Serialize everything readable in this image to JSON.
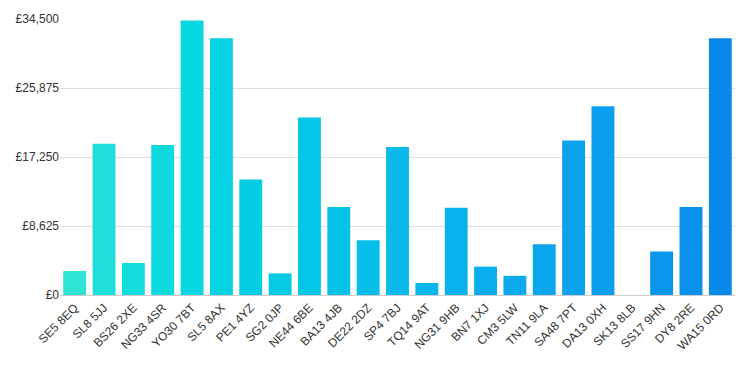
{
  "chart_data": {
    "type": "bar",
    "categories": [
      "SE5 8EQ",
      "SL8 5JJ",
      "BS26 2XE",
      "NG33 4SR",
      "YO30 7BT",
      "SL5 8AX",
      "PE1 4YZ",
      "SG2 0JP",
      "NE44 6BE",
      "BA13 4JB",
      "DE22 2DZ",
      "SP4 7BJ",
      "TQ14 9AT",
      "NG31 9HB",
      "BN7 1XJ",
      "CM3 5LW",
      "TN11 9LA",
      "SA48 7PT",
      "DA13 0XH",
      "SK13 8LB",
      "SS17 9HN",
      "DY8 2RE",
      "WA15 0RD"
    ],
    "values": [
      3000,
      18900,
      4000,
      18750,
      34300,
      32100,
      14450,
      2700,
      22200,
      11000,
      6850,
      18500,
      1500,
      10900,
      3550,
      2400,
      6350,
      19300,
      23600,
      0,
      5450,
      11000,
      32100
    ],
    "colors": [
      "#2fe4d2",
      "#1ee0d8",
      "#14dcdc",
      "#0ddadf",
      "#08d6e0",
      "#05d2e2",
      "#04cee3",
      "#04cae4",
      "#05c6e6",
      "#06c2e7",
      "#07bee8",
      "#08bae9",
      "#09b6ea",
      "#0ab2eb",
      "#0aaeec",
      "#0aaaec",
      "#0aa6ed",
      "#0aa2ed",
      "#0a9eee",
      "#0a9aee",
      "#0996ed",
      "#0992ec",
      "#088aea"
    ],
    "ylim": [
      0,
      34500
    ],
    "yticks": [
      {
        "value": 0,
        "label": "£0"
      },
      {
        "value": 8625,
        "label": "£8,625"
      },
      {
        "value": 17250,
        "label": "£17,250"
      },
      {
        "value": 25875,
        "label": "£25,875"
      },
      {
        "value": 34500,
        "label": "£34,500"
      }
    ],
    "grid": true
  }
}
